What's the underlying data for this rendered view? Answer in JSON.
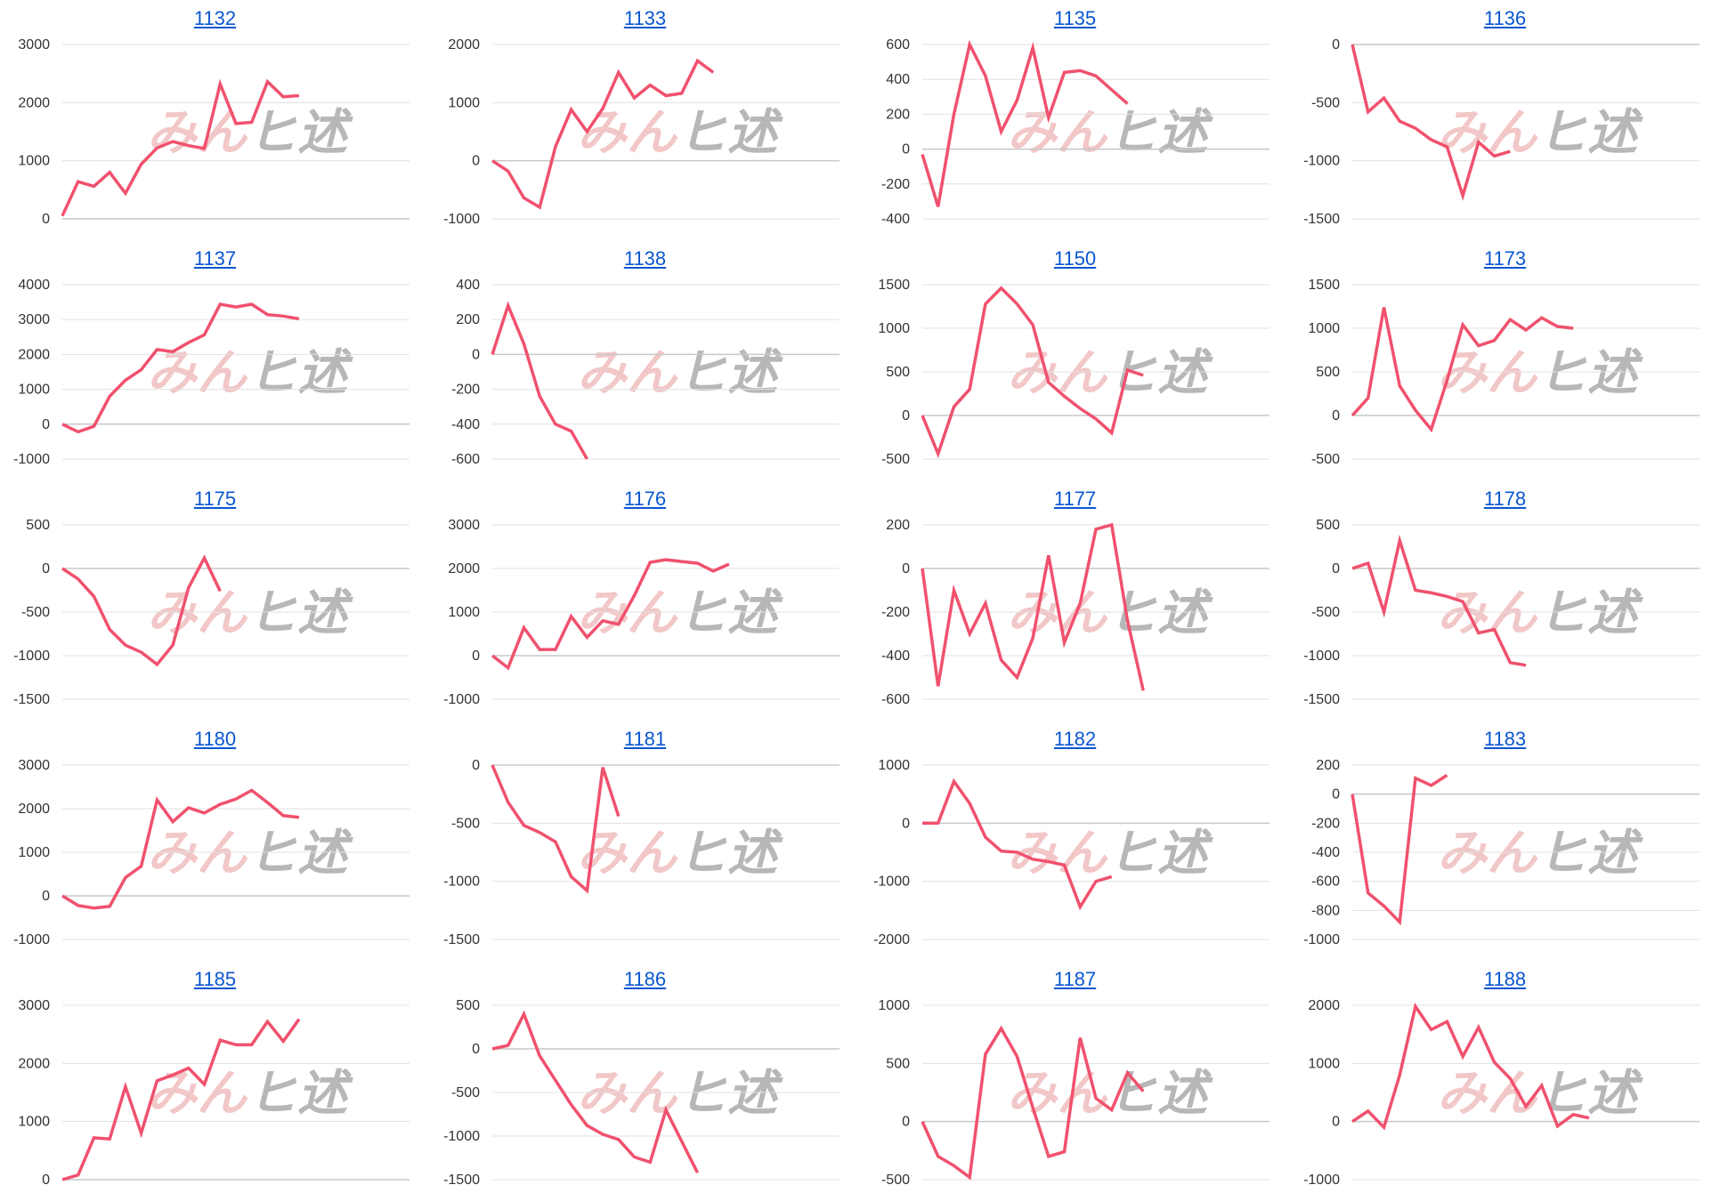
{
  "colors": {
    "line": "#f0516e",
    "grid": "#e0e0e0",
    "zero": "#c8c8c8",
    "title": "#0b57d0"
  },
  "watermark": {
    "left": "みん",
    "right": "ヒ述"
  },
  "chart_data": [
    {
      "type": "line",
      "title": "1132",
      "ylim": [
        0,
        3000
      ],
      "yticks": [
        0,
        1000,
        2000,
        3000
      ],
      "xmax": 22,
      "values": [
        50,
        640,
        560,
        800,
        440,
        940,
        1220,
        1330,
        1260,
        1210,
        2320,
        1640,
        1660,
        2360,
        2100,
        2120
      ]
    },
    {
      "type": "line",
      "title": "1133",
      "ylim": [
        -1000,
        2000
      ],
      "yticks": [
        -1000,
        0,
        1000,
        2000
      ],
      "xmax": 22,
      "values": [
        0,
        -180,
        -640,
        -800,
        240,
        880,
        500,
        900,
        1520,
        1080,
        1300,
        1120,
        1160,
        1720,
        1520
      ]
    },
    {
      "type": "line",
      "title": "1135",
      "ylim": [
        -400,
        600
      ],
      "yticks": [
        -400,
        -200,
        0,
        200,
        400,
        600
      ],
      "xmax": 22,
      "values": [
        -30,
        -330,
        200,
        600,
        420,
        100,
        280,
        580,
        180,
        440,
        450,
        420,
        340,
        260
      ]
    },
    {
      "type": "line",
      "title": "1136",
      "ylim": [
        -1500,
        0
      ],
      "yticks": [
        -1500,
        -1000,
        -500,
        0
      ],
      "xmax": 22,
      "values": [
        0,
        -580,
        -460,
        -660,
        -720,
        -820,
        -880,
        -1300,
        -840,
        -960,
        -920
      ]
    },
    {
      "type": "line",
      "title": "1137",
      "ylim": [
        -1000,
        4000
      ],
      "yticks": [
        -1000,
        0,
        1000,
        2000,
        3000,
        4000
      ],
      "xmax": 22,
      "values": [
        0,
        -220,
        -60,
        800,
        1260,
        1560,
        2140,
        2080,
        2340,
        2560,
        3440,
        3360,
        3440,
        3140,
        3100,
        3020
      ]
    },
    {
      "type": "line",
      "title": "1138",
      "ylim": [
        -600,
        400
      ],
      "yticks": [
        -600,
        -400,
        -200,
        0,
        200,
        400
      ],
      "xmax": 22,
      "values": [
        0,
        280,
        60,
        -240,
        -400,
        -440,
        -600
      ]
    },
    {
      "type": "line",
      "title": "1150",
      "ylim": [
        -500,
        1500
      ],
      "yticks": [
        -500,
        0,
        500,
        1000,
        1500
      ],
      "xmax": 22,
      "values": [
        0,
        -440,
        100,
        300,
        1280,
        1460,
        1280,
        1040,
        380,
        220,
        80,
        -40,
        -200,
        520,
        460
      ]
    },
    {
      "type": "line",
      "title": "1173",
      "ylim": [
        -500,
        1500
      ],
      "yticks": [
        -500,
        0,
        500,
        1000,
        1500
      ],
      "xmax": 22,
      "values": [
        0,
        200,
        1240,
        340,
        60,
        -160,
        400,
        1040,
        800,
        860,
        1100,
        980,
        1120,
        1020,
        1000
      ]
    },
    {
      "type": "line",
      "title": "1175",
      "ylim": [
        -1500,
        500
      ],
      "yticks": [
        -1500,
        -1000,
        -500,
        0,
        500
      ],
      "xmax": 22,
      "values": [
        0,
        -120,
        -320,
        -700,
        -880,
        -960,
        -1100,
        -880,
        -220,
        120,
        -260
      ]
    },
    {
      "type": "line",
      "title": "1176",
      "ylim": [
        -1000,
        3000
      ],
      "yticks": [
        -1000,
        0,
        1000,
        2000,
        3000
      ],
      "xmax": 22,
      "values": [
        0,
        -280,
        640,
        140,
        140,
        900,
        420,
        800,
        720,
        1380,
        2140,
        2200,
        2160,
        2120,
        1940,
        2100
      ]
    },
    {
      "type": "line",
      "title": "1177",
      "ylim": [
        -600,
        200
      ],
      "yticks": [
        -600,
        -400,
        -200,
        0,
        200
      ],
      "xmax": 22,
      "values": [
        0,
        -540,
        -100,
        -300,
        -160,
        -420,
        -500,
        -320,
        60,
        -340,
        -160,
        180,
        200,
        -240,
        -560
      ]
    },
    {
      "type": "line",
      "title": "1178",
      "ylim": [
        -1500,
        500
      ],
      "yticks": [
        -1500,
        -1000,
        -500,
        0,
        500
      ],
      "xmax": 22,
      "values": [
        0,
        60,
        -500,
        320,
        -250,
        -280,
        -320,
        -380,
        -740,
        -700,
        -1080,
        -1110
      ]
    },
    {
      "type": "line",
      "title": "1180",
      "ylim": [
        -1000,
        3000
      ],
      "yticks": [
        -1000,
        0,
        1000,
        2000,
        3000
      ],
      "xmax": 22,
      "values": [
        0,
        -220,
        -280,
        -240,
        420,
        680,
        2200,
        1700,
        2020,
        1900,
        2100,
        2220,
        2420,
        2140,
        1840,
        1800
      ]
    },
    {
      "type": "line",
      "title": "1181",
      "ylim": [
        -1500,
        0
      ],
      "yticks": [
        -1500,
        -1000,
        -500,
        0
      ],
      "xmax": 22,
      "values": [
        0,
        -320,
        -520,
        -580,
        -660,
        -960,
        -1080,
        -20,
        -440
      ]
    },
    {
      "type": "line",
      "title": "1182",
      "ylim": [
        -2000,
        1000
      ],
      "yticks": [
        -2000,
        -1000,
        0,
        1000
      ],
      "xmax": 22,
      "values": [
        0,
        0,
        720,
        340,
        -240,
        -480,
        -500,
        -620,
        -660,
        -720,
        -1440,
        -1000,
        -920
      ]
    },
    {
      "type": "line",
      "title": "1183",
      "ylim": [
        -1000,
        200
      ],
      "yticks": [
        -1000,
        -800,
        -600,
        -400,
        -200,
        0,
        200
      ],
      "xmax": 22,
      "values": [
        0,
        -680,
        -770,
        -880,
        110,
        60,
        130
      ]
    },
    {
      "type": "line",
      "title": "1185",
      "ylim": [
        0,
        3000
      ],
      "yticks": [
        0,
        1000,
        2000,
        3000
      ],
      "xmax": 22,
      "values": [
        0,
        80,
        720,
        700,
        1600,
        800,
        1700,
        1800,
        1920,
        1640,
        2400,
        2320,
        2320,
        2720,
        2380,
        2760
      ]
    },
    {
      "type": "line",
      "title": "1186",
      "ylim": [
        -1500,
        500
      ],
      "yticks": [
        -1500,
        -1000,
        -500,
        0,
        500
      ],
      "xmax": 22,
      "values": [
        0,
        40,
        400,
        -80,
        -360,
        -640,
        -880,
        -980,
        -1040,
        -1240,
        -1300,
        -700,
        -1060,
        -1420
      ]
    },
    {
      "type": "line",
      "title": "1187",
      "ylim": [
        -500,
        1000
      ],
      "yticks": [
        -500,
        0,
        500,
        1000
      ],
      "xmax": 22,
      "values": [
        0,
        -300,
        -380,
        -480,
        580,
        800,
        560,
        120,
        -300,
        -260,
        720,
        200,
        100,
        420,
        260
      ]
    },
    {
      "type": "line",
      "title": "1188",
      "ylim": [
        -1000,
        2000
      ],
      "yticks": [
        -1000,
        0,
        1000,
        2000
      ],
      "xmax": 22,
      "values": [
        0,
        180,
        -100,
        800,
        1980,
        1580,
        1720,
        1120,
        1620,
        1020,
        740,
        260,
        620,
        -80,
        120,
        60
      ]
    }
  ]
}
